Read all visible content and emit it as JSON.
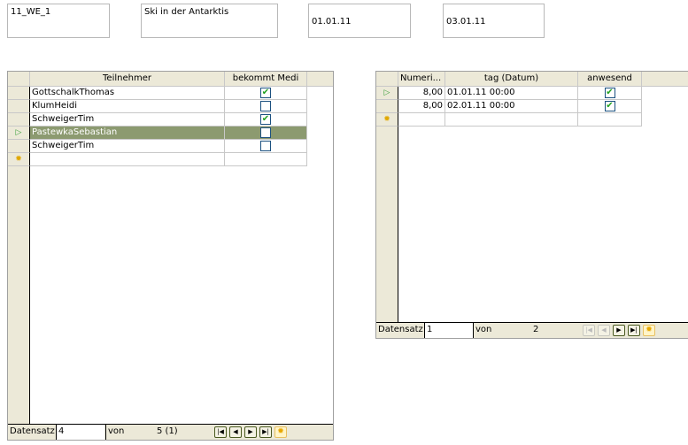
{
  "fields": [
    "11_WE_1",
    "Ski in der Antarktis",
    "01.01.11",
    "03.01.11"
  ],
  "left_grid": {
    "columns": [
      "Teilnehmer",
      "bekommt Medi"
    ],
    "rows": [
      {
        "name": "GottschalkThomas",
        "checked": true
      },
      {
        "name": "KlumHeidi",
        "checked": false
      },
      {
        "name": "SchweigerTim",
        "checked": true
      },
      {
        "name": "PastewkaSebastian",
        "checked": false,
        "current": true
      },
      {
        "name": "SchweigerTim",
        "checked": false
      }
    ],
    "nav": {
      "label": "Datensatz",
      "record": "4",
      "of_label": "von",
      "total": "5 (1)"
    }
  },
  "right_grid": {
    "columns": [
      "Numeri...",
      "tag (Datum)",
      "anwesend"
    ],
    "rows": [
      {
        "num": "8,00",
        "date": "01.01.11 00:00",
        "checked": true,
        "current": true
      },
      {
        "num": "8,00",
        "date": "02.01.11 00:00",
        "checked": true
      }
    ],
    "nav": {
      "label": "Datensatz",
      "record": "1",
      "of_label": "von",
      "total": "2"
    }
  },
  "colors": {
    "selected_row": "#8c9a70",
    "check": "#21a121"
  }
}
